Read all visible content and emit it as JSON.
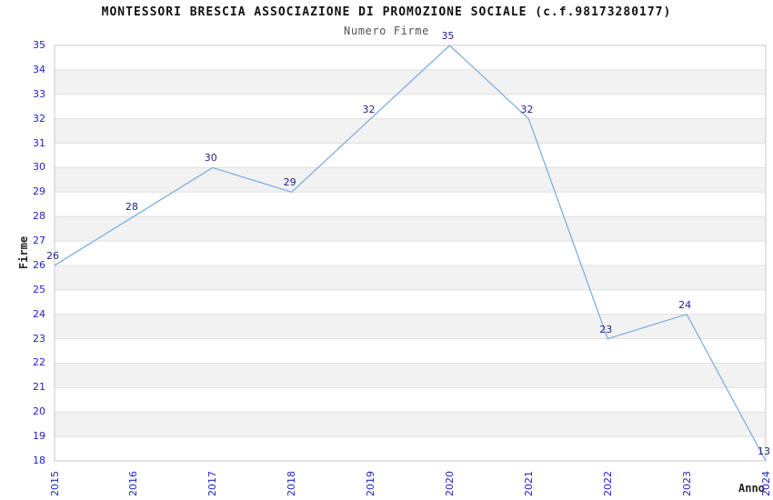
{
  "title": "MONTESSORI BRESCIA ASSOCIAZIONE DI PROMOZIONE SOCIALE (c.f.98173280177)",
  "subtitle": "Numero Firme",
  "chart_data": {
    "type": "line",
    "x": [
      "2015",
      "2016",
      "2017",
      "2018",
      "2019",
      "2020",
      "2021",
      "2022",
      "2023",
      "2024"
    ],
    "values": [
      26,
      28,
      30,
      29,
      32,
      35,
      32,
      23,
      24,
      13
    ],
    "title": "MONTESSORI BRESCIA ASSOCIAZIONE DI PROMOZIONE SOCIALE (c.f.98173280177)",
    "subtitle": "Numero Firme",
    "xlabel": "Anno",
    "ylabel": "Firme",
    "ylim": [
      18,
      35
    ],
    "ytick_step": 1,
    "grid": "horizontal-bands",
    "legend": "none",
    "markers": "none",
    "note": "2024 value 13 is below y-axis minimum and is clamped to the bottom edge",
    "colors": {
      "line": "#7AAEE0",
      "tick_label": "#2323CC",
      "data_label": "#1F1F8A",
      "band": "#F2F2F2",
      "gridline": "#E0E0E0",
      "border": "#C9C9C9",
      "title": "#111111",
      "subtitle": "#555555",
      "axis_title": "#222222",
      "background": "#FFFFFF"
    }
  }
}
